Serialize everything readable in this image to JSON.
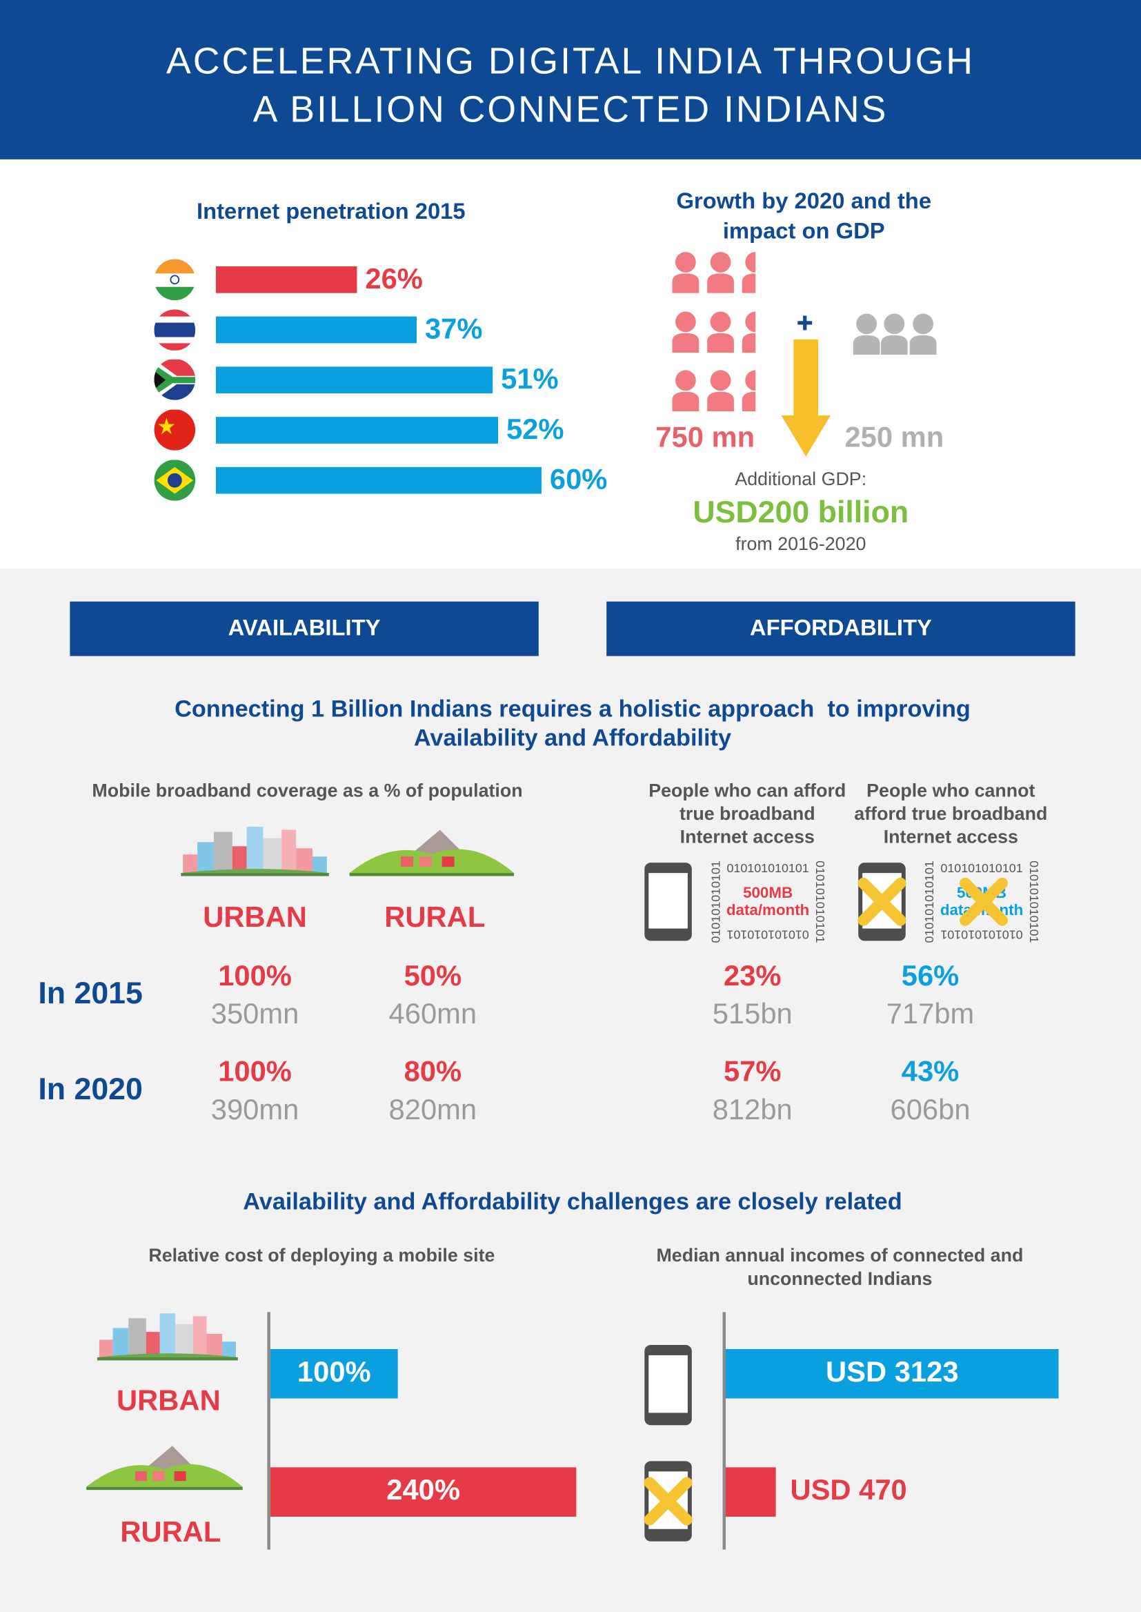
{
  "header": {
    "title": [
      "ACCELERATING DIGITAL INDIA THROUGH",
      "A BILLION CONNECTED INDIANS"
    ]
  },
  "penetration": {
    "type": "bar",
    "title": "Internet penetration 2015",
    "values": [
      26,
      37,
      51,
      52,
      60
    ],
    "value_labels": [
      "26%",
      "37%",
      "51%",
      "52%",
      "60%"
    ],
    "colors": [
      "#e63a46",
      "#0aa0e0",
      "#0aa0e0",
      "#0aa0e0",
      "#0aa0e0"
    ]
  },
  "growth": {
    "title": [
      "Growth by 2020 and the",
      "impact on GDP"
    ],
    "current": "750 mn",
    "additional": "250 mn",
    "gdp_label": "Additional GDP:",
    "gdp_value": "USD200 billion",
    "gdp_period": "from 2016-2020"
  },
  "sections": [
    "AVAILABILITY",
    "AFFORDABILITY"
  ],
  "intro": [
    "Connecting 1 Billion Indians requires a holistic approach  to improving",
    "Availability and Affordability"
  ],
  "coverage": {
    "title": "Mobile broadband coverage as a % of population",
    "columns": [
      "URBAN",
      "RURAL"
    ]
  },
  "affordability": {
    "columns": [
      [
        "People who can afford",
        "true broadband",
        "Internet access"
      ],
      [
        "People who cannot",
        "afford true broadband",
        "Internet access"
      ]
    ],
    "binary": "010101010101",
    "plan": [
      "500MB",
      "data/month"
    ]
  },
  "table": {
    "colors": [
      "#e63a46",
      "#e63a46",
      "#e63a46",
      "#0aa0e0"
    ],
    "rows": [
      {
        "label": "In 2015",
        "cells": [
          [
            "100%",
            "350mn"
          ],
          [
            "50%",
            "460mn"
          ],
          [
            "23%",
            "515bn"
          ],
          [
            "56%",
            "717bm"
          ]
        ]
      },
      {
        "label": "In 2020",
        "cells": [
          [
            "100%",
            "390mn"
          ],
          [
            "80%",
            "820mn"
          ],
          [
            "57%",
            "812bn"
          ],
          [
            "43%",
            "606bn"
          ]
        ]
      }
    ]
  },
  "challenges": "Availability and Affordability challenges are closely related",
  "cost": {
    "type": "bar",
    "title": "Relative cost of deploying a mobile site",
    "categories": [
      "URBAN",
      "RURAL"
    ],
    "values": [
      100,
      240
    ],
    "value_labels": [
      "100%",
      "240%"
    ],
    "colors": [
      "#0aa0e0",
      "#e63a46"
    ]
  },
  "income": {
    "type": "bar",
    "title": [
      "Median annual incomes of connected and",
      "unconnected Indians"
    ],
    "values": [
      3123,
      470
    ],
    "value_labels": [
      "USD 3123",
      "USD 470"
    ],
    "colors": [
      "#0aa0e0",
      "#e63a46"
    ]
  }
}
